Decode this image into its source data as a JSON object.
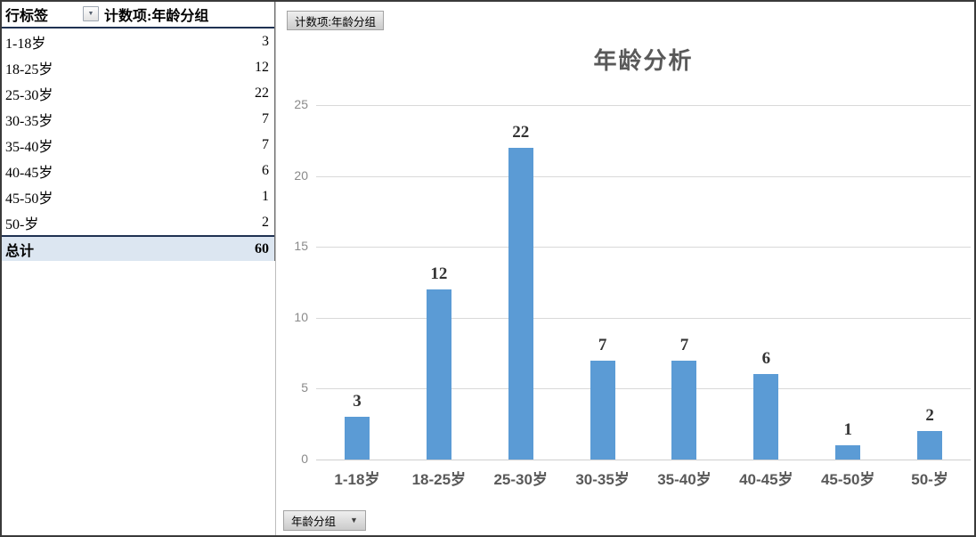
{
  "pivot_table": {
    "header": {
      "row_labels": "行标签",
      "value_field": "计数项:年龄分组"
    },
    "rows": [
      {
        "label": "1-18岁",
        "value": "3"
      },
      {
        "label": "18-25岁",
        "value": "12"
      },
      {
        "label": "25-30岁",
        "value": "22"
      },
      {
        "label": "30-35岁",
        "value": "7"
      },
      {
        "label": "35-40岁",
        "value": "7"
      },
      {
        "label": "40-45岁",
        "value": "6"
      },
      {
        "label": "45-50岁",
        "value": "1"
      },
      {
        "label": "50-岁",
        "value": "2"
      }
    ],
    "total": {
      "label": "总计",
      "value": "60"
    }
  },
  "chart": {
    "value_field_button": "计数项:年龄分组",
    "axis_field_button": "年龄分组",
    "dropdown_icon": "▼"
  },
  "chart_data": {
    "type": "bar",
    "title": "年龄分析",
    "categories": [
      "1-18岁",
      "18-25岁",
      "25-30岁",
      "30-35岁",
      "35-40岁",
      "40-45岁",
      "45-50岁",
      "50-岁"
    ],
    "values": [
      3,
      12,
      22,
      7,
      7,
      6,
      1,
      2
    ],
    "total": 60,
    "xlabel": "",
    "ylabel": "",
    "ylim": [
      0,
      25
    ],
    "yticks": [
      0,
      5,
      10,
      15,
      20,
      25
    ],
    "grid": true,
    "data_labels": true,
    "legend": "none",
    "bar_color": "#5b9bd5"
  },
  "colors": {
    "bar": "#5b9bd5",
    "gridline": "#d9d9d9",
    "title_text": "#595959",
    "axis_text": "#8a8a8a",
    "total_row_bg": "#dce6f1",
    "pivot_border": "#1f3252"
  }
}
